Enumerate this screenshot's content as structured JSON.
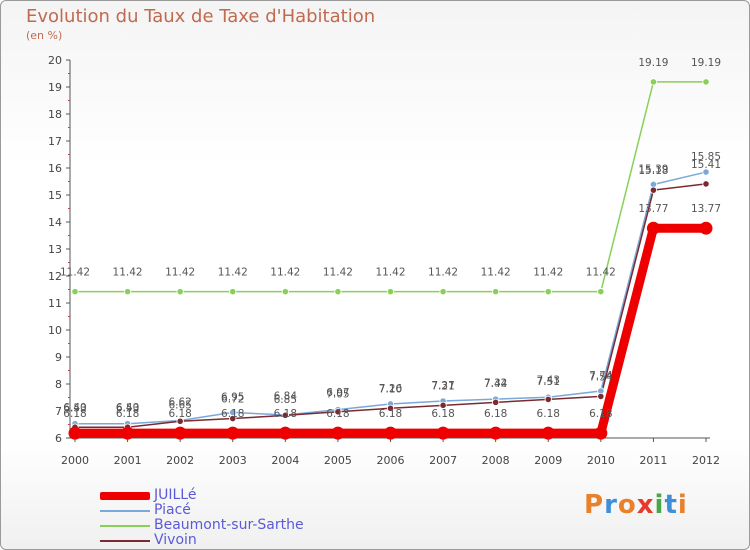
{
  "header": {
    "title": "Evolution du Taux de Taxe d'Habitation",
    "unit": "(en %)"
  },
  "logo": {
    "text": "Proxiti",
    "colors": [
      "#e8812a",
      "#3f8fd8",
      "#e8812a",
      "#e83a2a",
      "#48a848",
      "#3f8fd8",
      "#e8812a"
    ]
  },
  "chart_data": {
    "type": "line",
    "title": "Evolution du Taux de Taxe d'Habitation",
    "ylabel": "(en %)",
    "xlabel": "",
    "ylim": [
      6,
      20
    ],
    "yticks": [
      6,
      7,
      8,
      9,
      10,
      11,
      12,
      13,
      14,
      15,
      16,
      17,
      18,
      19,
      20
    ],
    "grid": false,
    "legend_position": "bottom-left",
    "x": [
      "2000",
      "2001",
      "2002",
      "2003",
      "2004",
      "2005",
      "2006",
      "2007",
      "2008",
      "2009",
      "2010",
      "2011",
      "2012"
    ],
    "series": [
      {
        "name": "JUILLé",
        "color": "#ee0000",
        "values": [
          6.18,
          6.18,
          6.18,
          6.18,
          6.18,
          6.18,
          6.18,
          6.18,
          6.18,
          6.18,
          6.18,
          13.77,
          13.77
        ],
        "labels": [
          "6.18",
          "6.18",
          "6.18",
          "6.18",
          "6.18",
          "6.18",
          "6.18",
          "6.18",
          "6.18",
          "6.18",
          "6.18",
          "13.77",
          "13.77"
        ]
      },
      {
        "name": "Piacé",
        "color": "#7aa8d8",
        "values": [
          6.53,
          6.53,
          6.65,
          6.95,
          6.85,
          7.05,
          7.26,
          7.37,
          7.44,
          7.51,
          7.74,
          15.39,
          15.85
        ],
        "labels": [
          "6.53",
          "6.53",
          "6.65",
          "6.95",
          "6.85",
          "7.05",
          "7.26",
          "7.37",
          "7.44",
          "7.51",
          "7.74",
          "15.39",
          "15.85"
        ]
      },
      {
        "name": "Beaumont-sur-Sarthe",
        "color": "#88d058",
        "values": [
          11.42,
          11.42,
          11.42,
          11.42,
          11.42,
          11.42,
          11.42,
          11.42,
          11.42,
          11.42,
          11.42,
          19.19,
          19.19
        ],
        "labels": [
          "11.42",
          "11.42",
          "11.42",
          "11.42",
          "11.42",
          "11.42",
          "11.42",
          "11.42",
          "11.42",
          "11.42",
          "11.42",
          "19.19",
          "19.19"
        ]
      },
      {
        "name": "Vivoin",
        "color": "#7a2a30",
        "values": [
          6.4,
          6.4,
          6.62,
          6.72,
          6.84,
          6.97,
          7.1,
          7.21,
          7.32,
          7.43,
          7.54,
          15.18,
          15.41
        ],
        "labels": [
          "6.40",
          "6.40",
          "6.62",
          "6.72",
          "6.84",
          "6.97",
          "7.10",
          "7.21",
          "7.32",
          "7.43",
          "7.54",
          "15.18",
          "15.41"
        ]
      }
    ]
  }
}
